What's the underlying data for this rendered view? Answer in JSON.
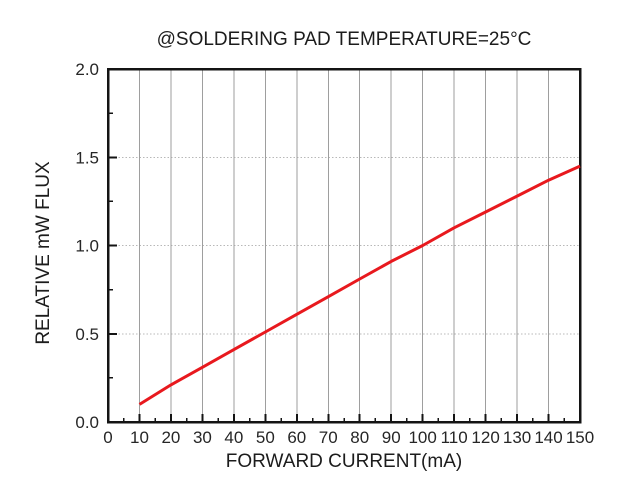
{
  "chart_data": {
    "type": "line",
    "title": "@SOLDERING PAD TEMPERATURE=25°C",
    "xlabel": "FORWARD CURRENT(mA)",
    "ylabel": "RELATIVE mW FLUX",
    "xlim": [
      0,
      150
    ],
    "ylim": [
      0.0,
      2.0
    ],
    "x_tick_labels": [
      "0",
      "10",
      "20",
      "30",
      "40",
      "50",
      "60",
      "70",
      "80",
      "90",
      "100",
      "110",
      "120",
      "130",
      "140",
      "150"
    ],
    "x_major_step": 10,
    "x_minor_step": 5,
    "y_tick_labels": [
      "0.0",
      "0.5",
      "1.0",
      "1.5",
      "2.0"
    ],
    "y_major_step": 0.5,
    "y_minor_step": 0.25,
    "grid": {
      "vertical_style": "solid",
      "vertical_color": "#9e9e9e",
      "horizontal_style": "dotted",
      "horizontal_color": "#b8b8b8"
    },
    "legend": "none",
    "frame_color": "#141414",
    "background": "#ffffff",
    "text_color": "#262626",
    "series": [
      {
        "name": "relative-mw-flux",
        "color": "#e8191e",
        "x": [
          10,
          20,
          30,
          40,
          50,
          60,
          70,
          80,
          90,
          100,
          110,
          120,
          130,
          140,
          150
        ],
        "y": [
          0.1,
          0.21,
          0.31,
          0.41,
          0.51,
          0.61,
          0.71,
          0.81,
          0.91,
          1.0,
          1.1,
          1.19,
          1.28,
          1.37,
          1.45
        ]
      }
    ]
  }
}
